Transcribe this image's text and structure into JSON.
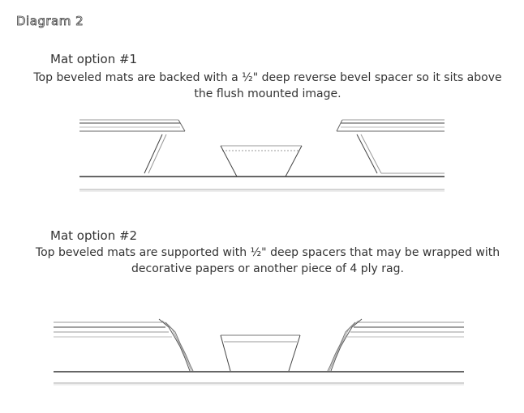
{
  "diagram_label": "Diagram 2",
  "option1": {
    "title": "Mat option #1",
    "description": "Top beveled mats are backed with a ½\" deep reverse bevel spacer so it sits above the flush mounted image."
  },
  "option2": {
    "title": "Mat option #2",
    "description": "Top beveled mats are supported with ½\" deep spacers that may be wrapped with decorative papers or another piece of 4 ply rag."
  }
}
